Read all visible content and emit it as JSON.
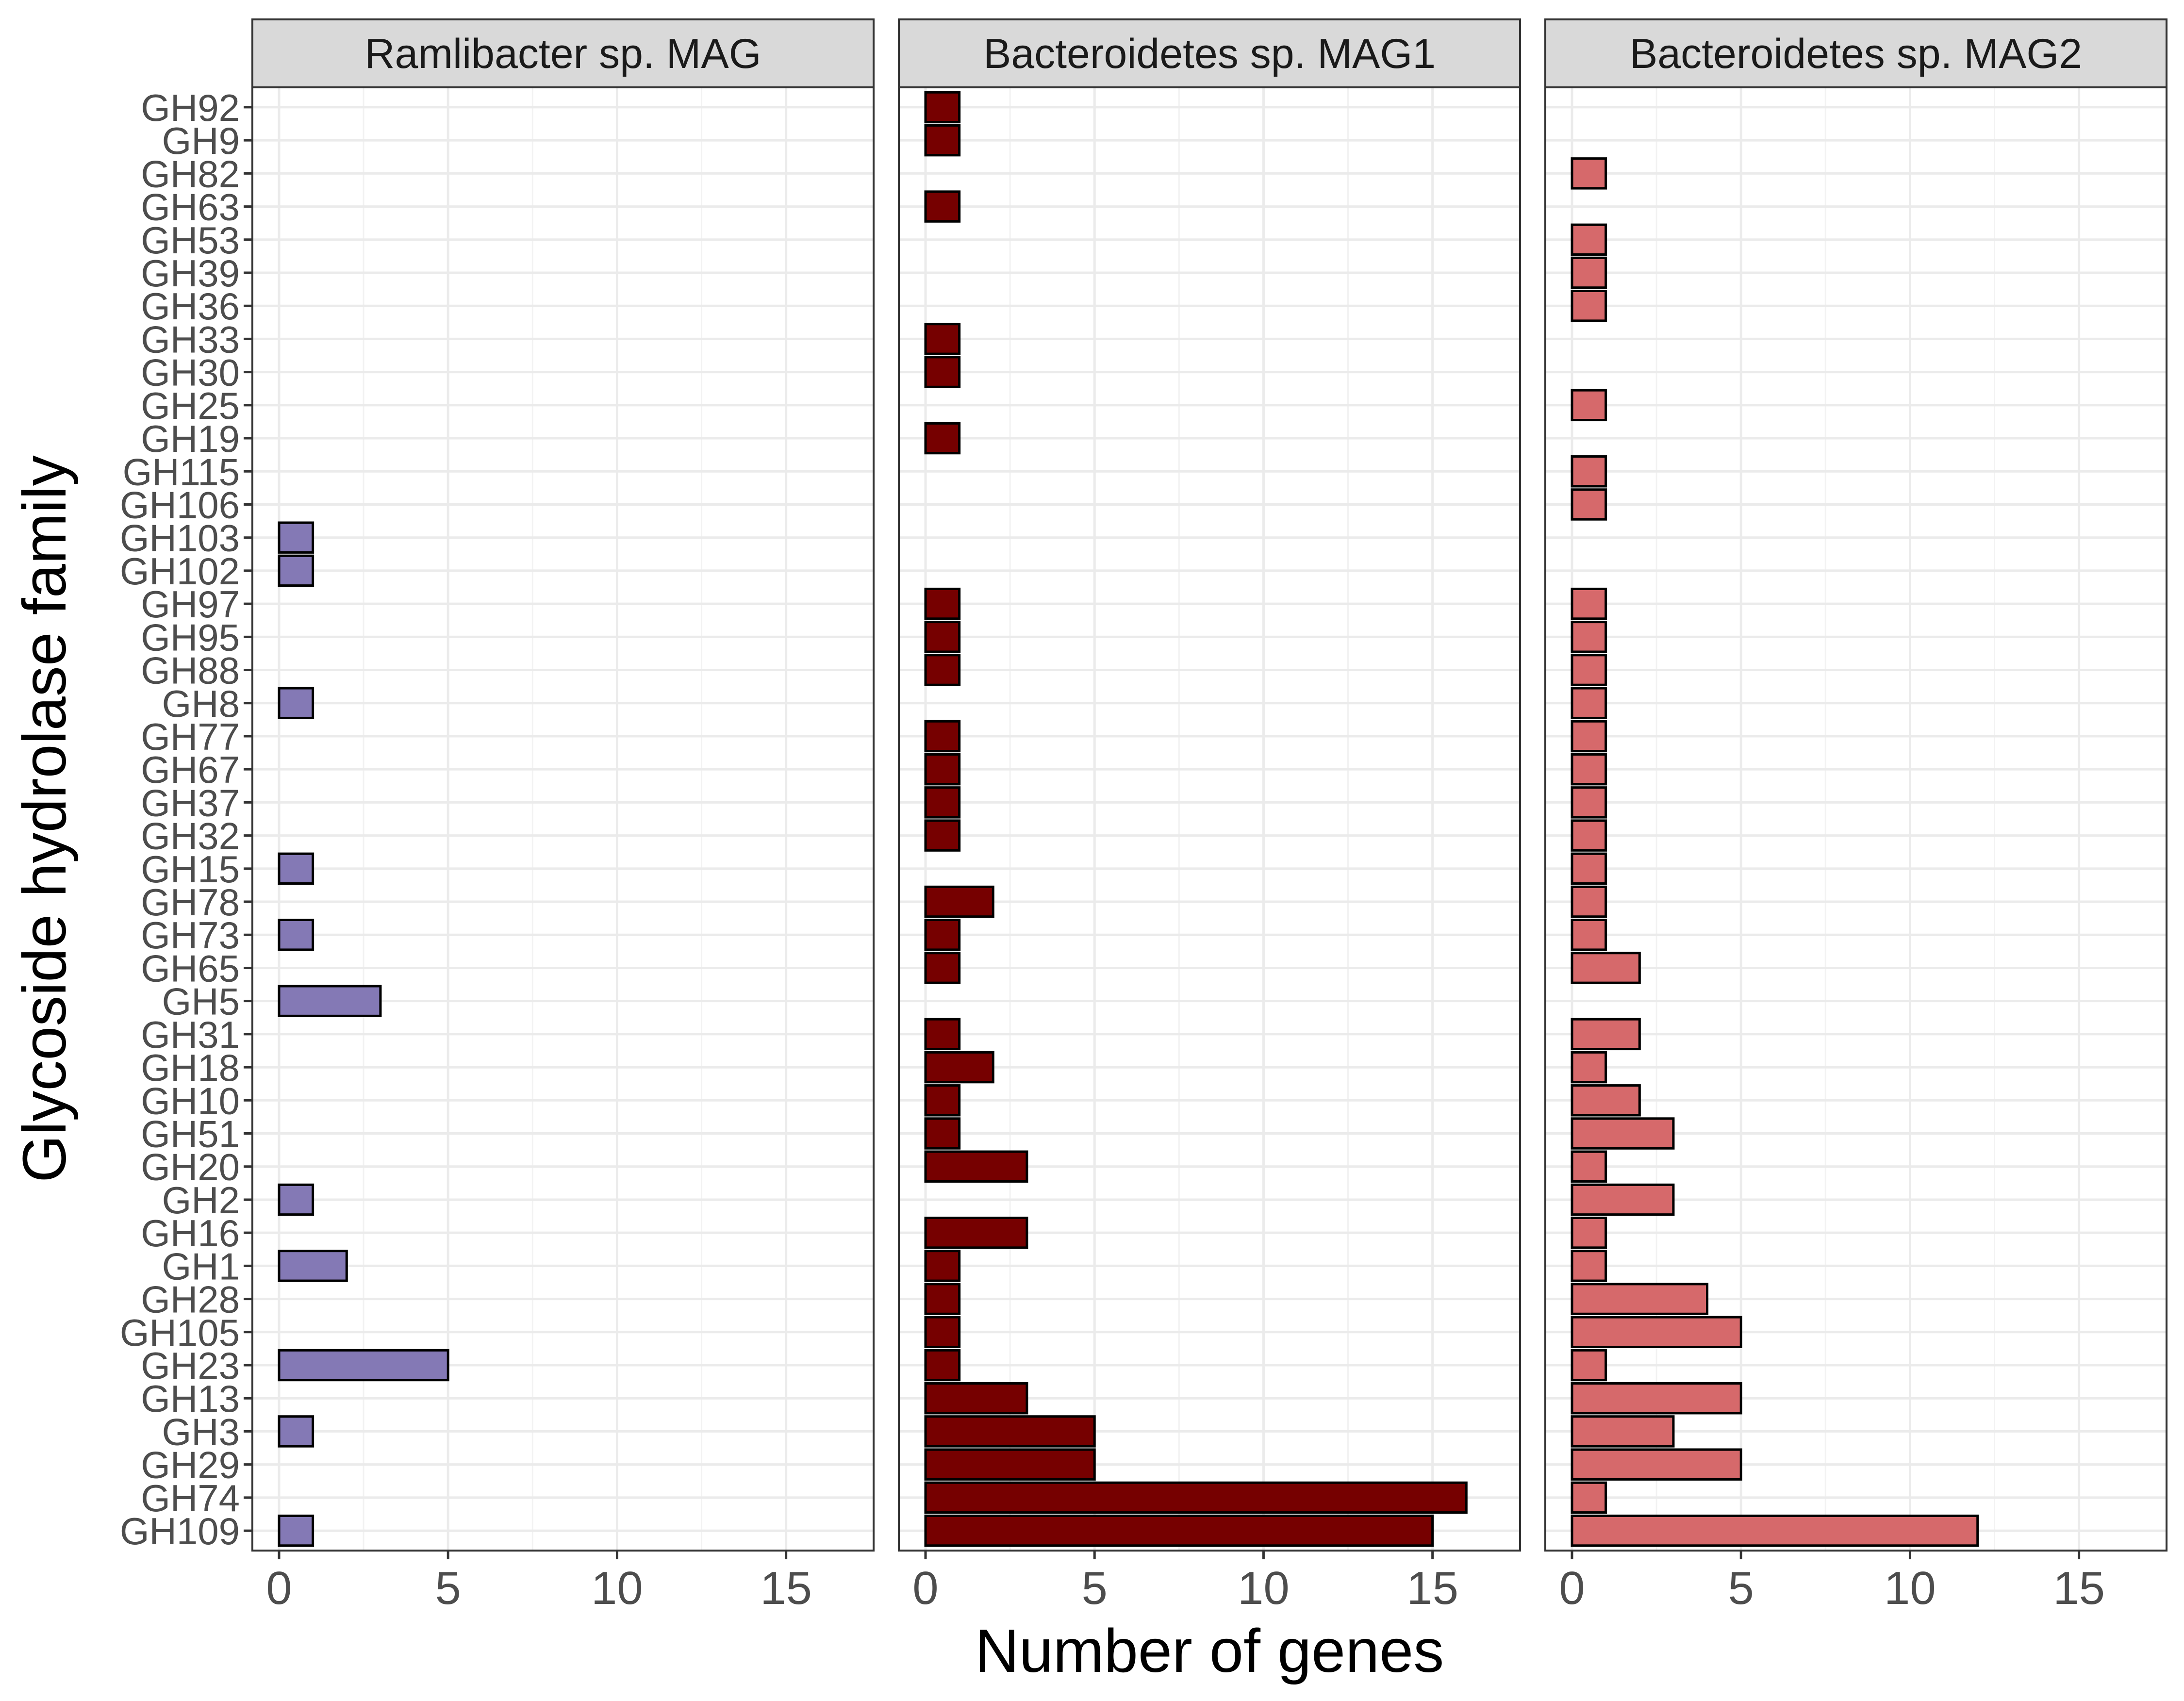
{
  "chart_data": {
    "type": "bar",
    "orientation": "horizontal",
    "facets": [
      "Ramlibacter sp. MAG",
      "Bacteroidetes sp. MAG1",
      "Bacteroidetes sp. MAG2"
    ],
    "ylabel": "Glycoside hydrolase family",
    "xlabel": "Number of genes",
    "xlim": [
      0,
      16.8
    ],
    "xticks": [
      0,
      5,
      10,
      15
    ],
    "grid": true,
    "legend": "none",
    "categories": [
      "GH92",
      "GH9",
      "GH82",
      "GH63",
      "GH53",
      "GH39",
      "GH36",
      "GH33",
      "GH30",
      "GH25",
      "GH19",
      "GH115",
      "GH106",
      "GH103",
      "GH102",
      "GH97",
      "GH95",
      "GH88",
      "GH8",
      "GH77",
      "GH67",
      "GH37",
      "GH32",
      "GH15",
      "GH78",
      "GH73",
      "GH65",
      "GH5",
      "GH31",
      "GH18",
      "GH10",
      "GH51",
      "GH20",
      "GH2",
      "GH16",
      "GH1",
      "GH28",
      "GH105",
      "GH23",
      "GH13",
      "GH3",
      "GH29",
      "GH74",
      "GH109"
    ],
    "series": [
      {
        "name": "Ramlibacter sp. MAG",
        "color": "#8479b5",
        "values": [
          0,
          0,
          0,
          0,
          0,
          0,
          0,
          0,
          0,
          0,
          0,
          0,
          0,
          1,
          1,
          0,
          0,
          0,
          1,
          0,
          0,
          0,
          0,
          1,
          0,
          1,
          0,
          3,
          0,
          0,
          0,
          0,
          0,
          1,
          0,
          2,
          0,
          0,
          5,
          0,
          1,
          0,
          0,
          1
        ]
      },
      {
        "name": "Bacteroidetes sp. MAG1",
        "color": "#760000",
        "values": [
          1,
          1,
          0,
          1,
          0,
          0,
          0,
          1,
          1,
          0,
          1,
          0,
          0,
          0,
          0,
          1,
          1,
          1,
          0,
          1,
          1,
          1,
          1,
          0,
          2,
          1,
          1,
          0,
          1,
          2,
          1,
          1,
          3,
          0,
          3,
          1,
          1,
          1,
          1,
          3,
          5,
          5,
          16,
          15
        ]
      },
      {
        "name": "Bacteroidetes sp. MAG2",
        "color": "#d6696b",
        "values": [
          0,
          0,
          1,
          0,
          1,
          1,
          1,
          0,
          0,
          1,
          0,
          1,
          1,
          0,
          0,
          1,
          1,
          1,
          1,
          1,
          1,
          1,
          1,
          1,
          1,
          1,
          2,
          0,
          2,
          1,
          2,
          3,
          1,
          3,
          1,
          1,
          4,
          5,
          1,
          5,
          3,
          5,
          1,
          12
        ]
      }
    ]
  }
}
